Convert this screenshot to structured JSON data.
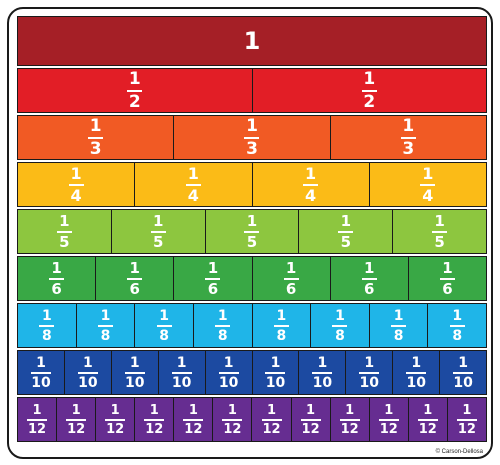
{
  "rows": [
    {
      "label": "1",
      "count": 1,
      "color": "#a51f26"
    },
    {
      "numerator": "1",
      "denominator": "2",
      "count": 2,
      "color": "#e21e26"
    },
    {
      "numerator": "1",
      "denominator": "3",
      "count": 3,
      "color": "#f15a24"
    },
    {
      "numerator": "1",
      "denominator": "4",
      "count": 4,
      "color": "#fbbb17"
    },
    {
      "numerator": "1",
      "denominator": "5",
      "count": 5,
      "color": "#8dc63f"
    },
    {
      "numerator": "1",
      "denominator": "6",
      "count": 6,
      "color": "#39a845"
    },
    {
      "numerator": "1",
      "denominator": "8",
      "count": 8,
      "color": "#1fb5e8"
    },
    {
      "numerator": "1",
      "denominator": "10",
      "count": 10,
      "color": "#1c4aa1"
    },
    {
      "numerator": "1",
      "denominator": "12",
      "count": 12,
      "color": "#662d91"
    }
  ],
  "copyright": "© Carson-Dellosa"
}
